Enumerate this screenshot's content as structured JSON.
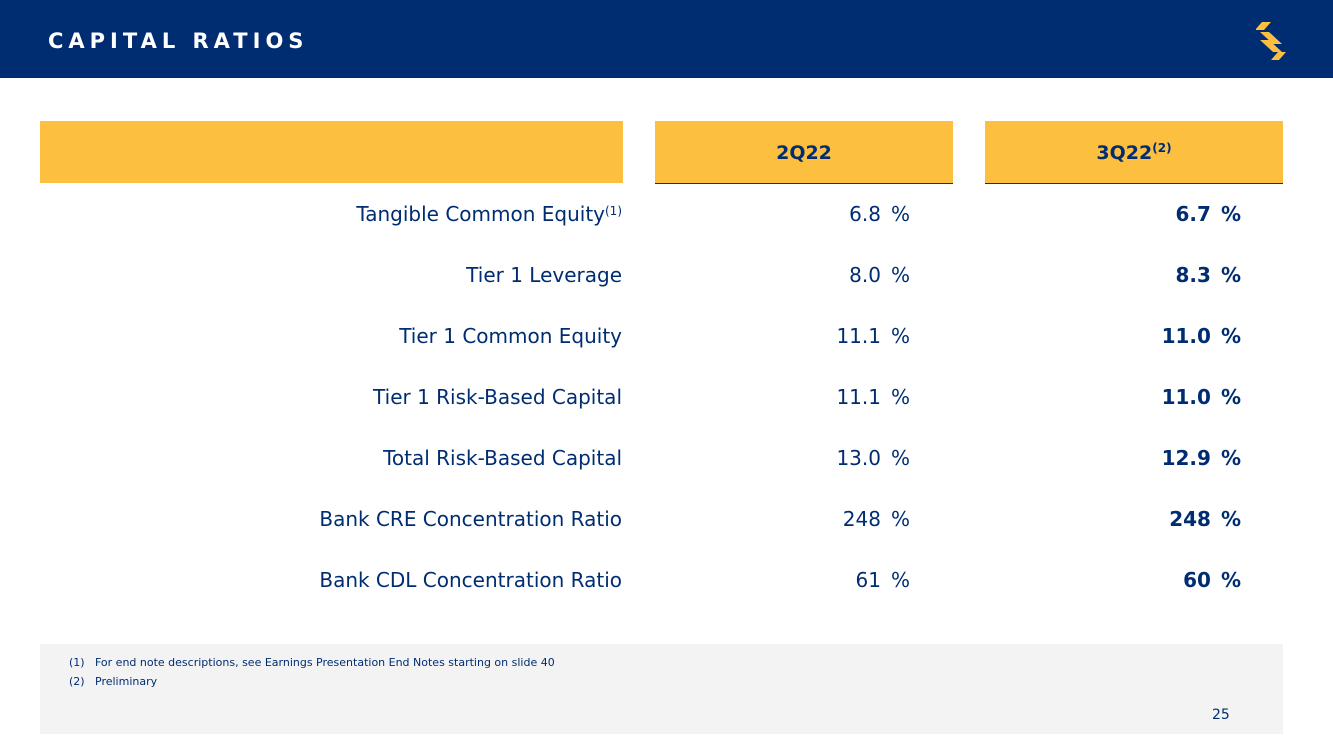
{
  "header": {
    "title": "CAPITAL RATIOS",
    "logo_icon": "stripes-logo-icon",
    "background_color": "#002d72",
    "logo_color": "#fdbf3f"
  },
  "table": {
    "header_color": "#fdbf3f",
    "columns": [
      {
        "label": "2Q22",
        "note": ""
      },
      {
        "label": "3Q22",
        "note": "(2)"
      }
    ],
    "rows": [
      {
        "label": "Tangible Common Equity",
        "note": "(1)",
        "q2": "6.8",
        "q3": "6.7",
        "unit": "%"
      },
      {
        "label": "Tier 1 Leverage",
        "note": "",
        "q2": "8.0",
        "q3": "8.3",
        "unit": "%"
      },
      {
        "label": "Tier 1 Common Equity",
        "note": "",
        "q2": "11.1",
        "q3": "11.0",
        "unit": "%"
      },
      {
        "label": "Tier 1 Risk-Based Capital",
        "note": "",
        "q2": "11.1",
        "q3": "11.0",
        "unit": "%"
      },
      {
        "label": "Total Risk-Based Capital",
        "note": "",
        "q2": "13.0",
        "q3": "12.9",
        "unit": "%"
      },
      {
        "label": "Bank CRE Concentration Ratio",
        "note": "",
        "q2": "248",
        "q3": "248",
        "unit": "%"
      },
      {
        "label": "Bank CDL Concentration Ratio",
        "note": "",
        "q2": "61",
        "q3": "60",
        "unit": "%"
      }
    ]
  },
  "footnotes": [
    {
      "num": "(1)",
      "text": "For end note descriptions, see Earnings Presentation End Notes starting on slide 40"
    },
    {
      "num": "(2)",
      "text": "Preliminary"
    }
  ],
  "page_number": "25"
}
